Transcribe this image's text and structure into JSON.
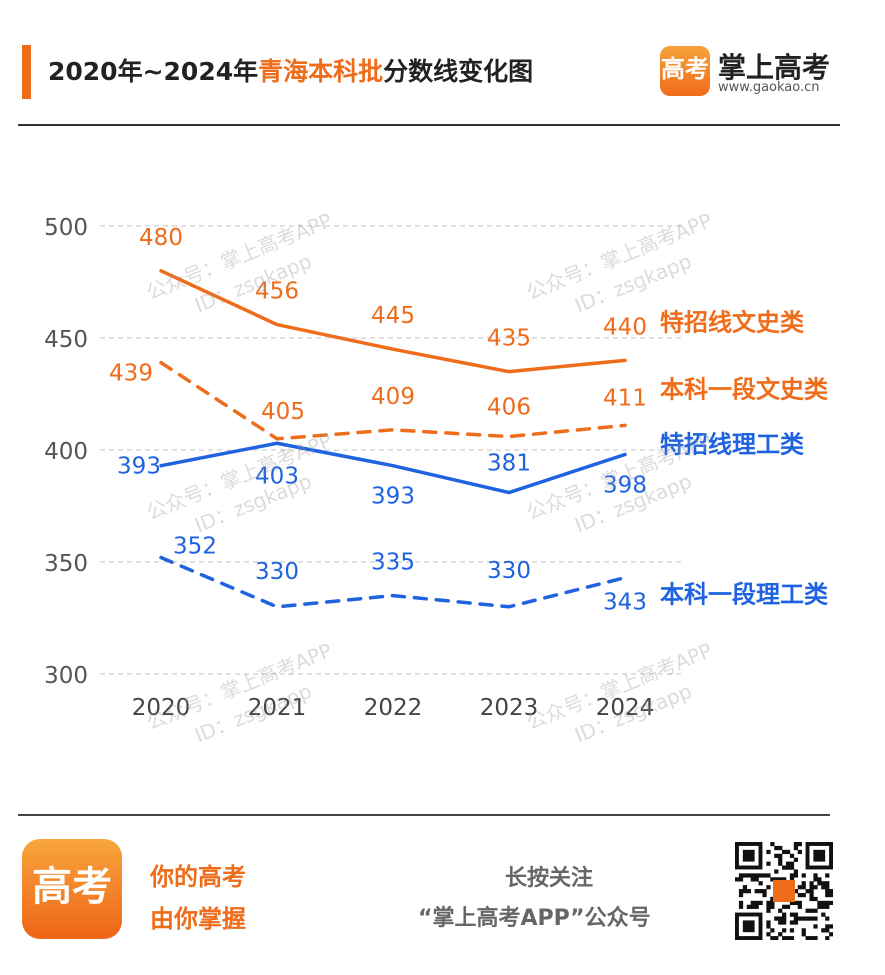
{
  "header": {
    "title_prefix": "2020年~2024年",
    "title_highlight": "青海本科批",
    "title_suffix": "分数线变化图",
    "brand_logo_text": "高考",
    "brand_name": "掌上高考",
    "brand_url": "www.gaokao.cn"
  },
  "watermark": {
    "line1": "公众号：掌上高考APP",
    "line2": "ID：zsgkapp"
  },
  "chart_data": {
    "type": "line",
    "title": "",
    "xlabel": "",
    "ylabel": "",
    "x": [
      "2020",
      "2021",
      "2022",
      "2023",
      "2024"
    ],
    "ylim": [
      300,
      500
    ],
    "yticks": [
      "300",
      "350",
      "400",
      "450",
      "500"
    ],
    "grid": true,
    "series": [
      {
        "name": "特招线文史类",
        "values": [
          480,
          456,
          445,
          435,
          440
        ],
        "color": "#ef6c1a",
        "dashed": false
      },
      {
        "name": "本科一段文史类",
        "values": [
          439,
          405,
          409,
          406,
          411
        ],
        "color": "#ef6c1a",
        "dashed": true
      },
      {
        "name": "特招线理工类",
        "values": [
          393,
          403,
          393,
          381,
          398
        ],
        "color": "#1f63e0",
        "dashed": false
      },
      {
        "name": "本科一段理工类",
        "values": [
          352,
          330,
          335,
          330,
          343
        ],
        "color": "#1f63e0",
        "dashed": true
      }
    ]
  },
  "footer": {
    "logo_text": "高考",
    "slogan_line1": "你的高考",
    "slogan_line2": "由你掌握",
    "follow_line1": "长按关注",
    "follow_line2": "“掌上高考APP”公众号"
  },
  "colors": {
    "accent": "#ef6c1a",
    "blue": "#1f63e0"
  }
}
